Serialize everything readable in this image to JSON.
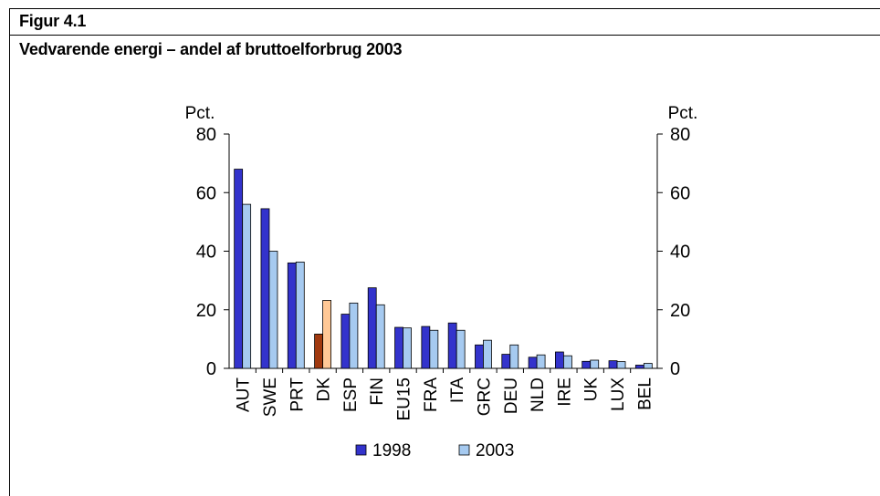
{
  "figure": {
    "label": "Figur 4.1",
    "title": "Vedvarende energi – andel af bruttoelforbrug 2003"
  },
  "chart_data": {
    "type": "bar",
    "title": "",
    "ylabel_left": "Pct.",
    "ylabel_right": "Pct.",
    "ylim": [
      0,
      80
    ],
    "yticks": [
      0,
      20,
      40,
      60,
      80
    ],
    "categories": [
      "AUT",
      "SWE",
      "PRT",
      "DK",
      "ESP",
      "FIN",
      "EU15",
      "FRA",
      "ITA",
      "GRC",
      "DEU",
      "NLD",
      "IRE",
      "UK",
      "LUX",
      "BEL"
    ],
    "series": [
      {
        "name": "1998",
        "values": [
          68,
          54.5,
          36,
          11.7,
          18.5,
          27.5,
          14,
          14.3,
          15.5,
          8,
          4.8,
          3.8,
          5.6,
          2.4,
          2.6,
          1.1
        ],
        "color": "#3333cc"
      },
      {
        "name": "2003",
        "values": [
          56,
          40,
          36.3,
          23.2,
          22.3,
          21.7,
          13.8,
          13,
          13,
          9.6,
          8,
          4.6,
          4.3,
          2.8,
          2.3,
          1.7
        ],
        "color": "#a6caf0"
      }
    ],
    "highlight": {
      "category": "DK",
      "colors": {
        "1998": "#a0390f",
        "2003": "#ffc896"
      }
    },
    "legend": {
      "placement": "bottom",
      "entries": [
        "1998",
        "2003"
      ]
    },
    "grid": false
  }
}
